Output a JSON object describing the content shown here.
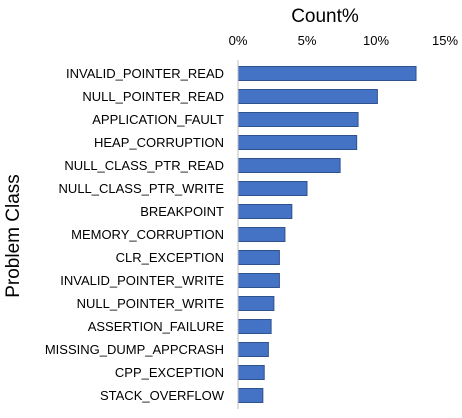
{
  "chart_data": {
    "type": "bar",
    "orientation": "horizontal",
    "title": "",
    "xlabel": "Count%",
    "ylabel": "Problem Class",
    "x_axis_position": "top",
    "xlim": [
      0,
      15
    ],
    "xticks": [
      {
        "value": 0,
        "label": "0%"
      },
      {
        "value": 5,
        "label": "5%"
      },
      {
        "value": 10,
        "label": "10%"
      },
      {
        "value": 15,
        "label": "15%"
      }
    ],
    "grid": false,
    "legend": "none",
    "bar_color": "#4472C4",
    "bar_edge_color": "#2F528F",
    "categories": [
      "INVALID_POINTER_READ",
      "NULL_POINTER_READ",
      "APPLICATION_FAULT",
      "HEAP_CORRUPTION",
      "NULL_CLASS_PTR_READ",
      "NULL_CLASS_PTR_WRITE",
      "BREAKPOINT",
      "MEMORY_CORRUPTION",
      "CLR_EXCEPTION",
      "INVALID_POINTER_WRITE",
      "NULL_POINTER_WRITE",
      "ASSERTION_FAILURE",
      "MISSING_DUMP_APPCRASH",
      "CPP_EXCEPTION",
      "STACK_OVERFLOW"
    ],
    "values": [
      12.9,
      10.1,
      8.7,
      8.6,
      7.4,
      5.0,
      3.9,
      3.4,
      3.0,
      3.0,
      2.6,
      2.4,
      2.2,
      1.9,
      1.8
    ]
  }
}
